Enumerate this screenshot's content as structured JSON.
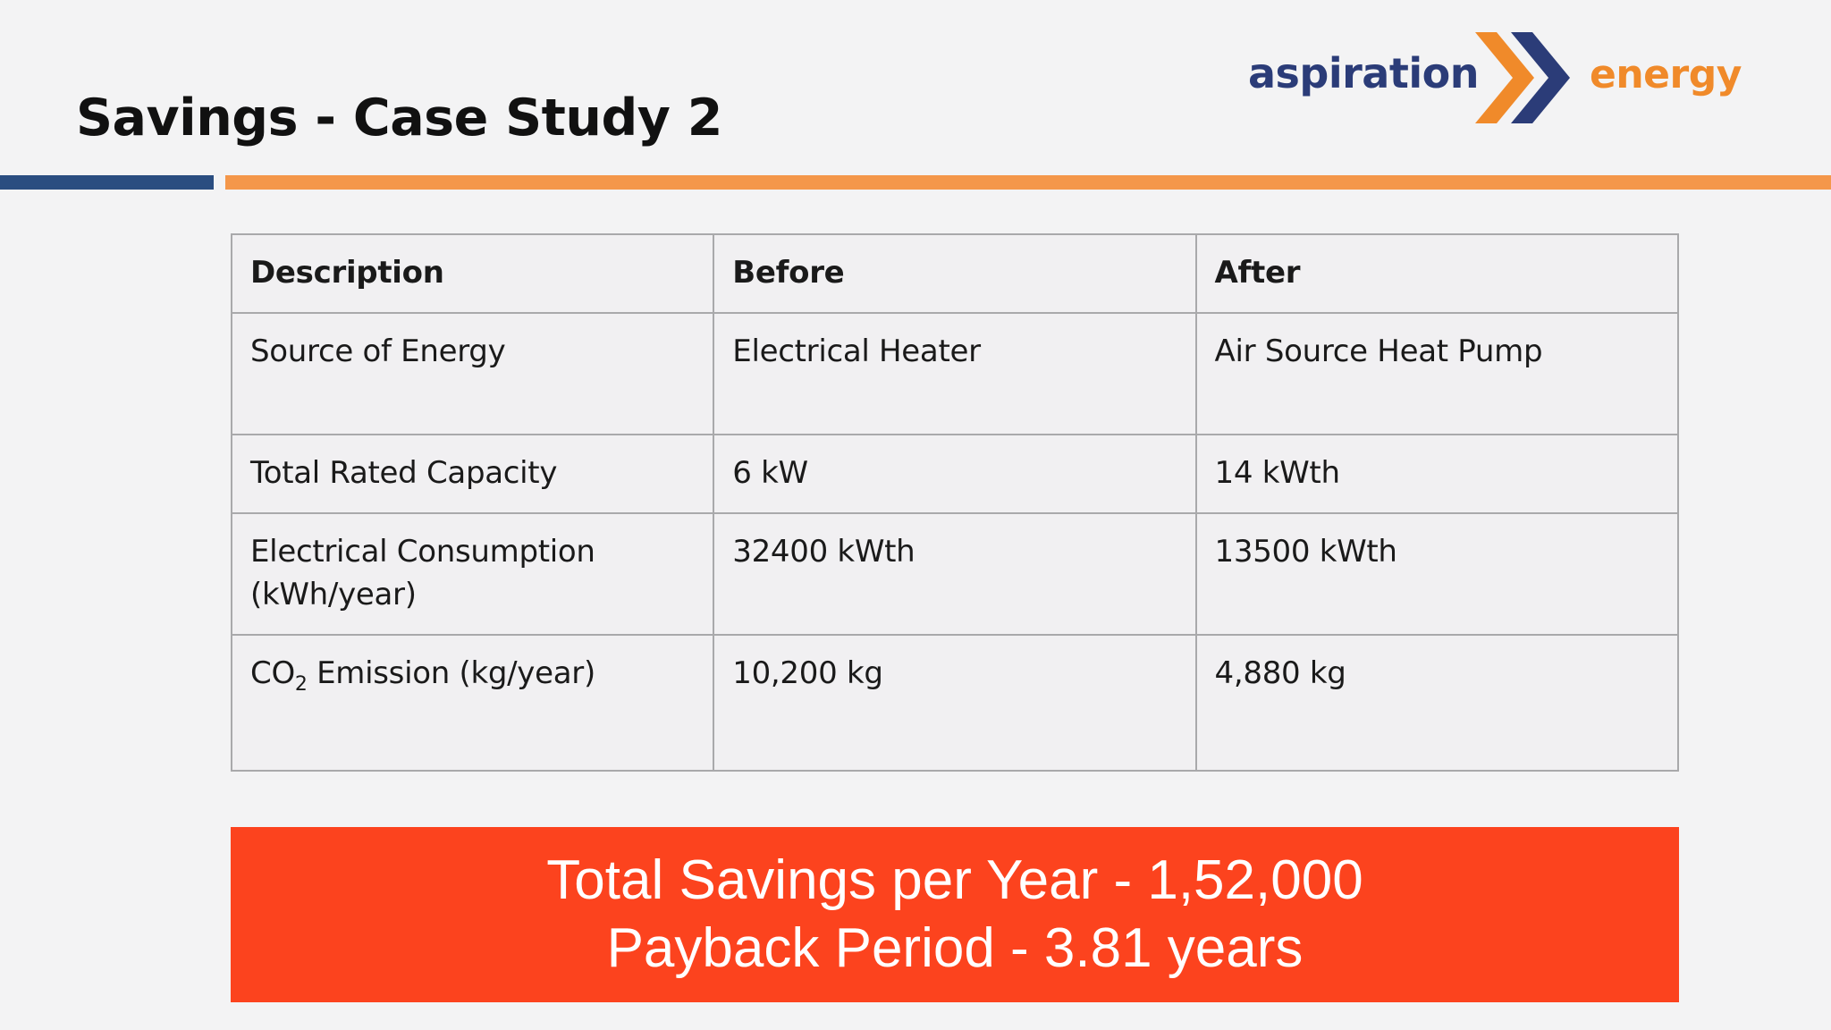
{
  "slide": {
    "title": "Savings - Case Study 2"
  },
  "logo": {
    "word_left": "aspiration",
    "word_right": "energy",
    "mark_icon": "double-chevron-icon",
    "colors": {
      "navy": "#2b3c78",
      "orange": "#f08a2a"
    }
  },
  "table": {
    "headers": [
      "Description",
      "Before",
      "After"
    ],
    "rows": [
      {
        "description": "Source of Energy",
        "before": "Electrical Heater",
        "after": "Air Source Heat Pump"
      },
      {
        "description": "Total Rated Capacity",
        "before": "6 kW",
        "after": "14 kWth"
      },
      {
        "description": "Electrical Consumption (kWh/year)",
        "before": "32400 kWth",
        "after": "13500 kWth"
      },
      {
        "description_prefix": "CO",
        "description_subscript": "2",
        "description_suffix": " Emission (kg/year)",
        "before": "10,200 kg",
        "after": "4,880 kg"
      }
    ]
  },
  "summary": {
    "savings_line": "Total Savings per Year - 1,52,000",
    "payback_line": "Payback Period  - 3.81 years",
    "background_color": "#fc431e"
  },
  "colors": {
    "rule_blue": "#2a4d80",
    "rule_orange": "#f4974a"
  }
}
